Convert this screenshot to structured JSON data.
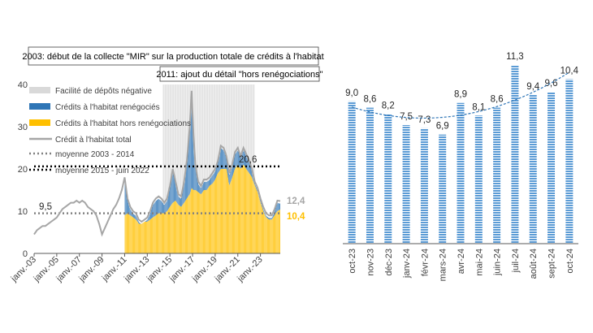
{
  "colors": {
    "shade": "#d9d9d9",
    "renegotiated": "#2e75b6",
    "hors": "#ffc000",
    "total": "#a6a6a6",
    "avg": "#808080",
    "avg2": "#000000",
    "bar_right": "#5b9bd5",
    "trend": "#2e75b6"
  },
  "chart_data": [
    {
      "type": "area",
      "title": "",
      "annotations": [
        "2003: début de la collecte \"MIR\" sur la production totale de crédits à l'habitat",
        "2011: ajout du détail \"hors renégociations\""
      ],
      "legend": [
        "Facilité de dépôts négative",
        "Crédits à l'habitat renégociés",
        "Crédits à l'habitat hors renégociations",
        "Crédit à l'habitat total",
        "moyenne 2003 - 2014",
        "moyenne 2015 - juin 2022"
      ],
      "ylim": [
        0,
        40
      ],
      "yticks": [
        "0",
        "10",
        "20",
        "30",
        "40"
      ],
      "xticks": [
        "janv.-03",
        "janv.-05",
        "janv.-07",
        "janv.-09",
        "janv.-11",
        "janv.-13",
        "janv.-15",
        "janv.-17",
        "janv.-19",
        "janv.-21",
        "janv.-23"
      ],
      "x_start": "2003-01",
      "x_end": "2024-10",
      "negative_rate_period": [
        "2014-06",
        "2022-07"
      ],
      "avg_2003_2014": 9.5,
      "avg_2015_2022": 20.6,
      "last_total": 12.4,
      "last_hors": 10.4,
      "value_labels": [
        "9,5",
        "20,6",
        "12,4",
        "10,4"
      ],
      "series": [
        {
          "name": "Crédit à l'habitat total",
          "points": [
            [
              "2003-01",
              4.5
            ],
            [
              "2003-04",
              5.5
            ],
            [
              "2003-07",
              6
            ],
            [
              "2003-10",
              6.5
            ],
            [
              "2004-01",
              6.5
            ],
            [
              "2004-04",
              7
            ],
            [
              "2004-07",
              7.5
            ],
            [
              "2004-10",
              8
            ],
            [
              "2005-01",
              8.5
            ],
            [
              "2005-04",
              9.5
            ],
            [
              "2005-07",
              10.5
            ],
            [
              "2005-10",
              11
            ],
            [
              "2006-01",
              11.5
            ],
            [
              "2006-04",
              12
            ],
            [
              "2006-07",
              12
            ],
            [
              "2006-10",
              12.5
            ],
            [
              "2007-01",
              12
            ],
            [
              "2007-04",
              12.5
            ],
            [
              "2007-07",
              12
            ],
            [
              "2007-10",
              11
            ],
            [
              "2008-01",
              10.5
            ],
            [
              "2008-04",
              10
            ],
            [
              "2008-07",
              9
            ],
            [
              "2008-10",
              7
            ],
            [
              "2009-01",
              4.5
            ],
            [
              "2009-04",
              6
            ],
            [
              "2009-07",
              7.5
            ],
            [
              "2009-10",
              9
            ],
            [
              "2010-01",
              10.5
            ],
            [
              "2010-04",
              11.5
            ],
            [
              "2010-07",
              13
            ],
            [
              "2010-10",
              15
            ],
            [
              "2011-01",
              18
            ],
            [
              "2011-04",
              13
            ],
            [
              "2011-07",
              11
            ],
            [
              "2011-10",
              10
            ],
            [
              "2012-01",
              9.5
            ],
            [
              "2012-04",
              8
            ],
            [
              "2012-07",
              7.5
            ],
            [
              "2012-10",
              8
            ],
            [
              "2013-01",
              8.5
            ],
            [
              "2013-04",
              10
            ],
            [
              "2013-07",
              12
            ],
            [
              "2013-10",
              13
            ],
            [
              "2014-01",
              13.5
            ],
            [
              "2014-04",
              13
            ],
            [
              "2014-07",
              12
            ],
            [
              "2014-10",
              13
            ],
            [
              "2015-01",
              16
            ],
            [
              "2015-04",
              20
            ],
            [
              "2015-07",
              17
            ],
            [
              "2015-10",
              14
            ],
            [
              "2016-01",
              13.5
            ],
            [
              "2016-04",
              17
            ],
            [
              "2016-07",
              22
            ],
            [
              "2016-10",
              30
            ],
            [
              "2016-12",
              38.5
            ],
            [
              "2017-02",
              28
            ],
            [
              "2017-04",
              21
            ],
            [
              "2017-07",
              17
            ],
            [
              "2017-10",
              16
            ],
            [
              "2018-01",
              17.5
            ],
            [
              "2018-04",
              17.5
            ],
            [
              "2018-07",
              18
            ],
            [
              "2018-10",
              19
            ],
            [
              "2019-01",
              20
            ],
            [
              "2019-04",
              22
            ],
            [
              "2019-07",
              25.5
            ],
            [
              "2019-10",
              25
            ],
            [
              "2020-01",
              23
            ],
            [
              "2020-04",
              19
            ],
            [
              "2020-07",
              21
            ],
            [
              "2020-10",
              24
            ],
            [
              "2021-01",
              25
            ],
            [
              "2021-04",
              23
            ],
            [
              "2021-07",
              25
            ],
            [
              "2021-10",
              23.5
            ],
            [
              "2022-01",
              22
            ],
            [
              "2022-04",
              20
            ],
            [
              "2022-07",
              17
            ],
            [
              "2022-10",
              15.5
            ],
            [
              "2023-01",
              13
            ],
            [
              "2023-04",
              11
            ],
            [
              "2023-07",
              9.5
            ],
            [
              "2023-10",
              9
            ],
            [
              "2024-01",
              9
            ],
            [
              "2024-04",
              10.5
            ],
            [
              "2024-07",
              12.5
            ],
            [
              "2024-10",
              12.4
            ]
          ]
        },
        {
          "name": "Crédits à l'habitat hors renégociations",
          "points": [
            [
              "2011-01",
              9
            ],
            [
              "2011-04",
              9.5
            ],
            [
              "2011-07",
              9
            ],
            [
              "2011-10",
              8.5
            ],
            [
              "2012-01",
              8
            ],
            [
              "2012-04",
              7
            ],
            [
              "2012-07",
              7
            ],
            [
              "2012-10",
              7.5
            ],
            [
              "2013-01",
              7.5
            ],
            [
              "2013-04",
              8
            ],
            [
              "2013-07",
              8.5
            ],
            [
              "2013-10",
              9
            ],
            [
              "2014-01",
              9.5
            ],
            [
              "2014-04",
              9.5
            ],
            [
              "2014-07",
              9.5
            ],
            [
              "2014-10",
              10
            ],
            [
              "2015-01",
              11
            ],
            [
              "2015-04",
              12
            ],
            [
              "2015-07",
              12.5
            ],
            [
              "2015-10",
              11.5
            ],
            [
              "2016-01",
              11
            ],
            [
              "2016-04",
              12
            ],
            [
              "2016-07",
              13
            ],
            [
              "2016-10",
              14
            ],
            [
              "2016-12",
              15.5
            ],
            [
              "2017-02",
              15
            ],
            [
              "2017-04",
              15
            ],
            [
              "2017-07",
              14.5
            ],
            [
              "2017-10",
              14
            ],
            [
              "2018-01",
              15
            ],
            [
              "2018-04",
              15
            ],
            [
              "2018-07",
              16
            ],
            [
              "2018-10",
              16.5
            ],
            [
              "2019-01",
              17.5
            ],
            [
              "2019-04",
              19
            ],
            [
              "2019-07",
              20
            ],
            [
              "2019-10",
              20
            ],
            [
              "2020-01",
              20
            ],
            [
              "2020-04",
              16
            ],
            [
              "2020-07",
              18
            ],
            [
              "2020-10",
              20
            ],
            [
              "2021-01",
              21
            ],
            [
              "2021-04",
              20
            ],
            [
              "2021-07",
              21
            ],
            [
              "2021-10",
              20
            ],
            [
              "2022-01",
              19
            ],
            [
              "2022-04",
              18
            ],
            [
              "2022-07",
              16
            ],
            [
              "2022-10",
              14.5
            ],
            [
              "2023-01",
              12
            ],
            [
              "2023-04",
              10
            ],
            [
              "2023-07",
              8.5
            ],
            [
              "2023-10",
              8
            ],
            [
              "2024-01",
              8
            ],
            [
              "2024-04",
              9
            ],
            [
              "2024-07",
              10
            ],
            [
              "2024-10",
              10.4
            ]
          ]
        }
      ]
    },
    {
      "type": "bar",
      "categories": [
        "oct-23",
        "nov-23",
        "déc-23",
        "janv-24",
        "févr-24",
        "mars-24",
        "avr-24",
        "mai-24",
        "juin-24",
        "juil-24",
        "août-24",
        "sept-24",
        "oct-24"
      ],
      "values": [
        9.0,
        8.6,
        8.2,
        7.5,
        7.3,
        6.9,
        8.9,
        8.1,
        8.6,
        11.3,
        9.4,
        9.6,
        10.4
      ],
      "labels": [
        "9,0",
        "8,6",
        "8,2",
        "7,5",
        "7,3",
        "6,9",
        "8,9",
        "8,1",
        "8,6",
        "11,3",
        "9,4",
        "9,6",
        "10,4"
      ],
      "ylim": [
        0,
        12.5
      ],
      "trend": "polynomial (dashed)",
      "title": "",
      "xlabel": "",
      "ylabel": ""
    }
  ]
}
